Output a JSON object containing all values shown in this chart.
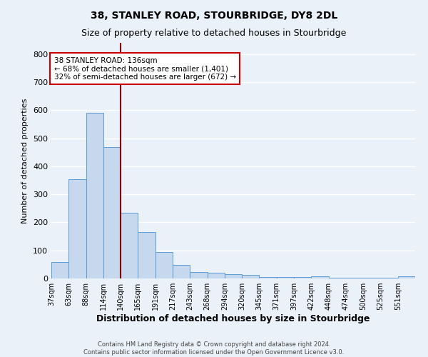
{
  "title": "38, STANLEY ROAD, STOURBRIDGE, DY8 2DL",
  "subtitle": "Size of property relative to detached houses in Stourbridge",
  "xlabel": "Distribution of detached houses by size in Stourbridge",
  "ylabel": "Number of detached properties",
  "footer_line1": "Contains HM Land Registry data © Crown copyright and database right 2024.",
  "footer_line2": "Contains public sector information licensed under the Open Government Licence v3.0.",
  "annotation_title": "38 STANLEY ROAD: 136sqm",
  "annotation_line2": "← 68% of detached houses are smaller (1,401)",
  "annotation_line3": "32% of semi-detached houses are larger (672) →",
  "bar_labels": [
    "37sqm",
    "63sqm",
    "88sqm",
    "114sqm",
    "140sqm",
    "165sqm",
    "191sqm",
    "217sqm",
    "243sqm",
    "268sqm",
    "294sqm",
    "320sqm",
    "345sqm",
    "371sqm",
    "397sqm",
    "422sqm",
    "448sqm",
    "474sqm",
    "500sqm",
    "525sqm",
    "551sqm"
  ],
  "bar_values": [
    58,
    355,
    590,
    468,
    235,
    165,
    95,
    48,
    22,
    20,
    15,
    12,
    5,
    4,
    4,
    8,
    3,
    2,
    2,
    2,
    7
  ],
  "bar_color": "#c5d8ed",
  "bar_edge_color": "#5b9bd5",
  "bg_color": "#eaf1f8",
  "grid_color": "#ffffff",
  "vline_x": 4,
  "vline_color": "#8b0000",
  "annotation_box_color": "#ffffff",
  "annotation_box_edge": "#cc0000",
  "ylim": [
    0,
    840
  ],
  "yticks": [
    0,
    100,
    200,
    300,
    400,
    500,
    600,
    700,
    800
  ]
}
